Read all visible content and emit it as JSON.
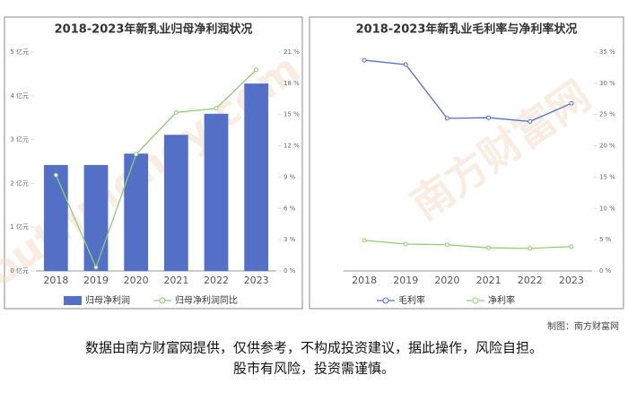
{
  "chart_data": [
    {
      "type": "combo",
      "title": "2018-2023年新乳业归母净利润状况",
      "categories": [
        "2018",
        "2019",
        "2020",
        "2021",
        "2022",
        "2023"
      ],
      "series": [
        {
          "name": "归母净利润",
          "type": "bar",
          "color": "#5470c6",
          "values": [
            2.42,
            2.42,
            2.68,
            3.11,
            3.59,
            4.28
          ]
        },
        {
          "name": "归母净利润同比",
          "type": "line",
          "axis": "y2",
          "color": "#91cc75",
          "values": [
            9.2,
            0.34,
            11.2,
            15.2,
            15.6,
            19.3
          ]
        }
      ],
      "ylim": [
        0,
        5
      ],
      "yticks": [
        {
          "value": 0,
          "label": "0 亿元"
        },
        {
          "value": 1,
          "label": "1 亿元"
        },
        {
          "value": 2,
          "label": "2 亿元"
        },
        {
          "value": 3,
          "label": "3 亿元"
        },
        {
          "value": 4,
          "label": "4 亿元"
        },
        {
          "value": 5,
          "label": "5 亿元"
        }
      ],
      "y2lim": [
        0,
        21
      ],
      "y2ticks": [
        {
          "value": 0,
          "label": "0 %"
        },
        {
          "value": 3,
          "label": "3 %"
        },
        {
          "value": 6,
          "label": "6 %"
        },
        {
          "value": 9,
          "label": "9 %"
        },
        {
          "value": 12,
          "label": "12 %"
        },
        {
          "value": 15,
          "label": "15 %"
        },
        {
          "value": 18,
          "label": "18 %"
        },
        {
          "value": 21,
          "label": "21 %"
        }
      ],
      "legend": "bottom"
    },
    {
      "type": "line",
      "title": "2018-2023年新乳业毛利率与净利率状况",
      "categories": [
        "2018",
        "2019",
        "2020",
        "2021",
        "2022",
        "2023"
      ],
      "series": [
        {
          "name": "毛利率",
          "type": "line",
          "axis": "y2",
          "color": "#5470c6",
          "values": [
            33.7,
            33.0,
            24.4,
            24.5,
            23.9,
            26.8
          ]
        },
        {
          "name": "净利率",
          "type": "line",
          "axis": "y2",
          "color": "#91cc75",
          "values": [
            4.9,
            4.3,
            4.2,
            3.7,
            3.6,
            3.9
          ]
        }
      ],
      "y2lim": [
        0,
        35
      ],
      "y2ticks": [
        {
          "value": 0,
          "label": "0 %"
        },
        {
          "value": 5,
          "label": "5 %"
        },
        {
          "value": 10,
          "label": "10 %"
        },
        {
          "value": 15,
          "label": "15 %"
        },
        {
          "value": 20,
          "label": "20 %"
        },
        {
          "value": 25,
          "label": "25 %"
        },
        {
          "value": 30,
          "label": "30 %"
        },
        {
          "value": 35,
          "label": "35 %"
        }
      ],
      "legend": "bottom"
    }
  ],
  "watermark": [
    "southmoney.com",
    "南方财富网"
  ],
  "credit": "制图：南方财富网",
  "disclaimer": [
    "数据由南方财富网提供，仅供参考，不构成投资建议，据此操作，风险自担。",
    "股市有风险，投资需谨慎。"
  ]
}
